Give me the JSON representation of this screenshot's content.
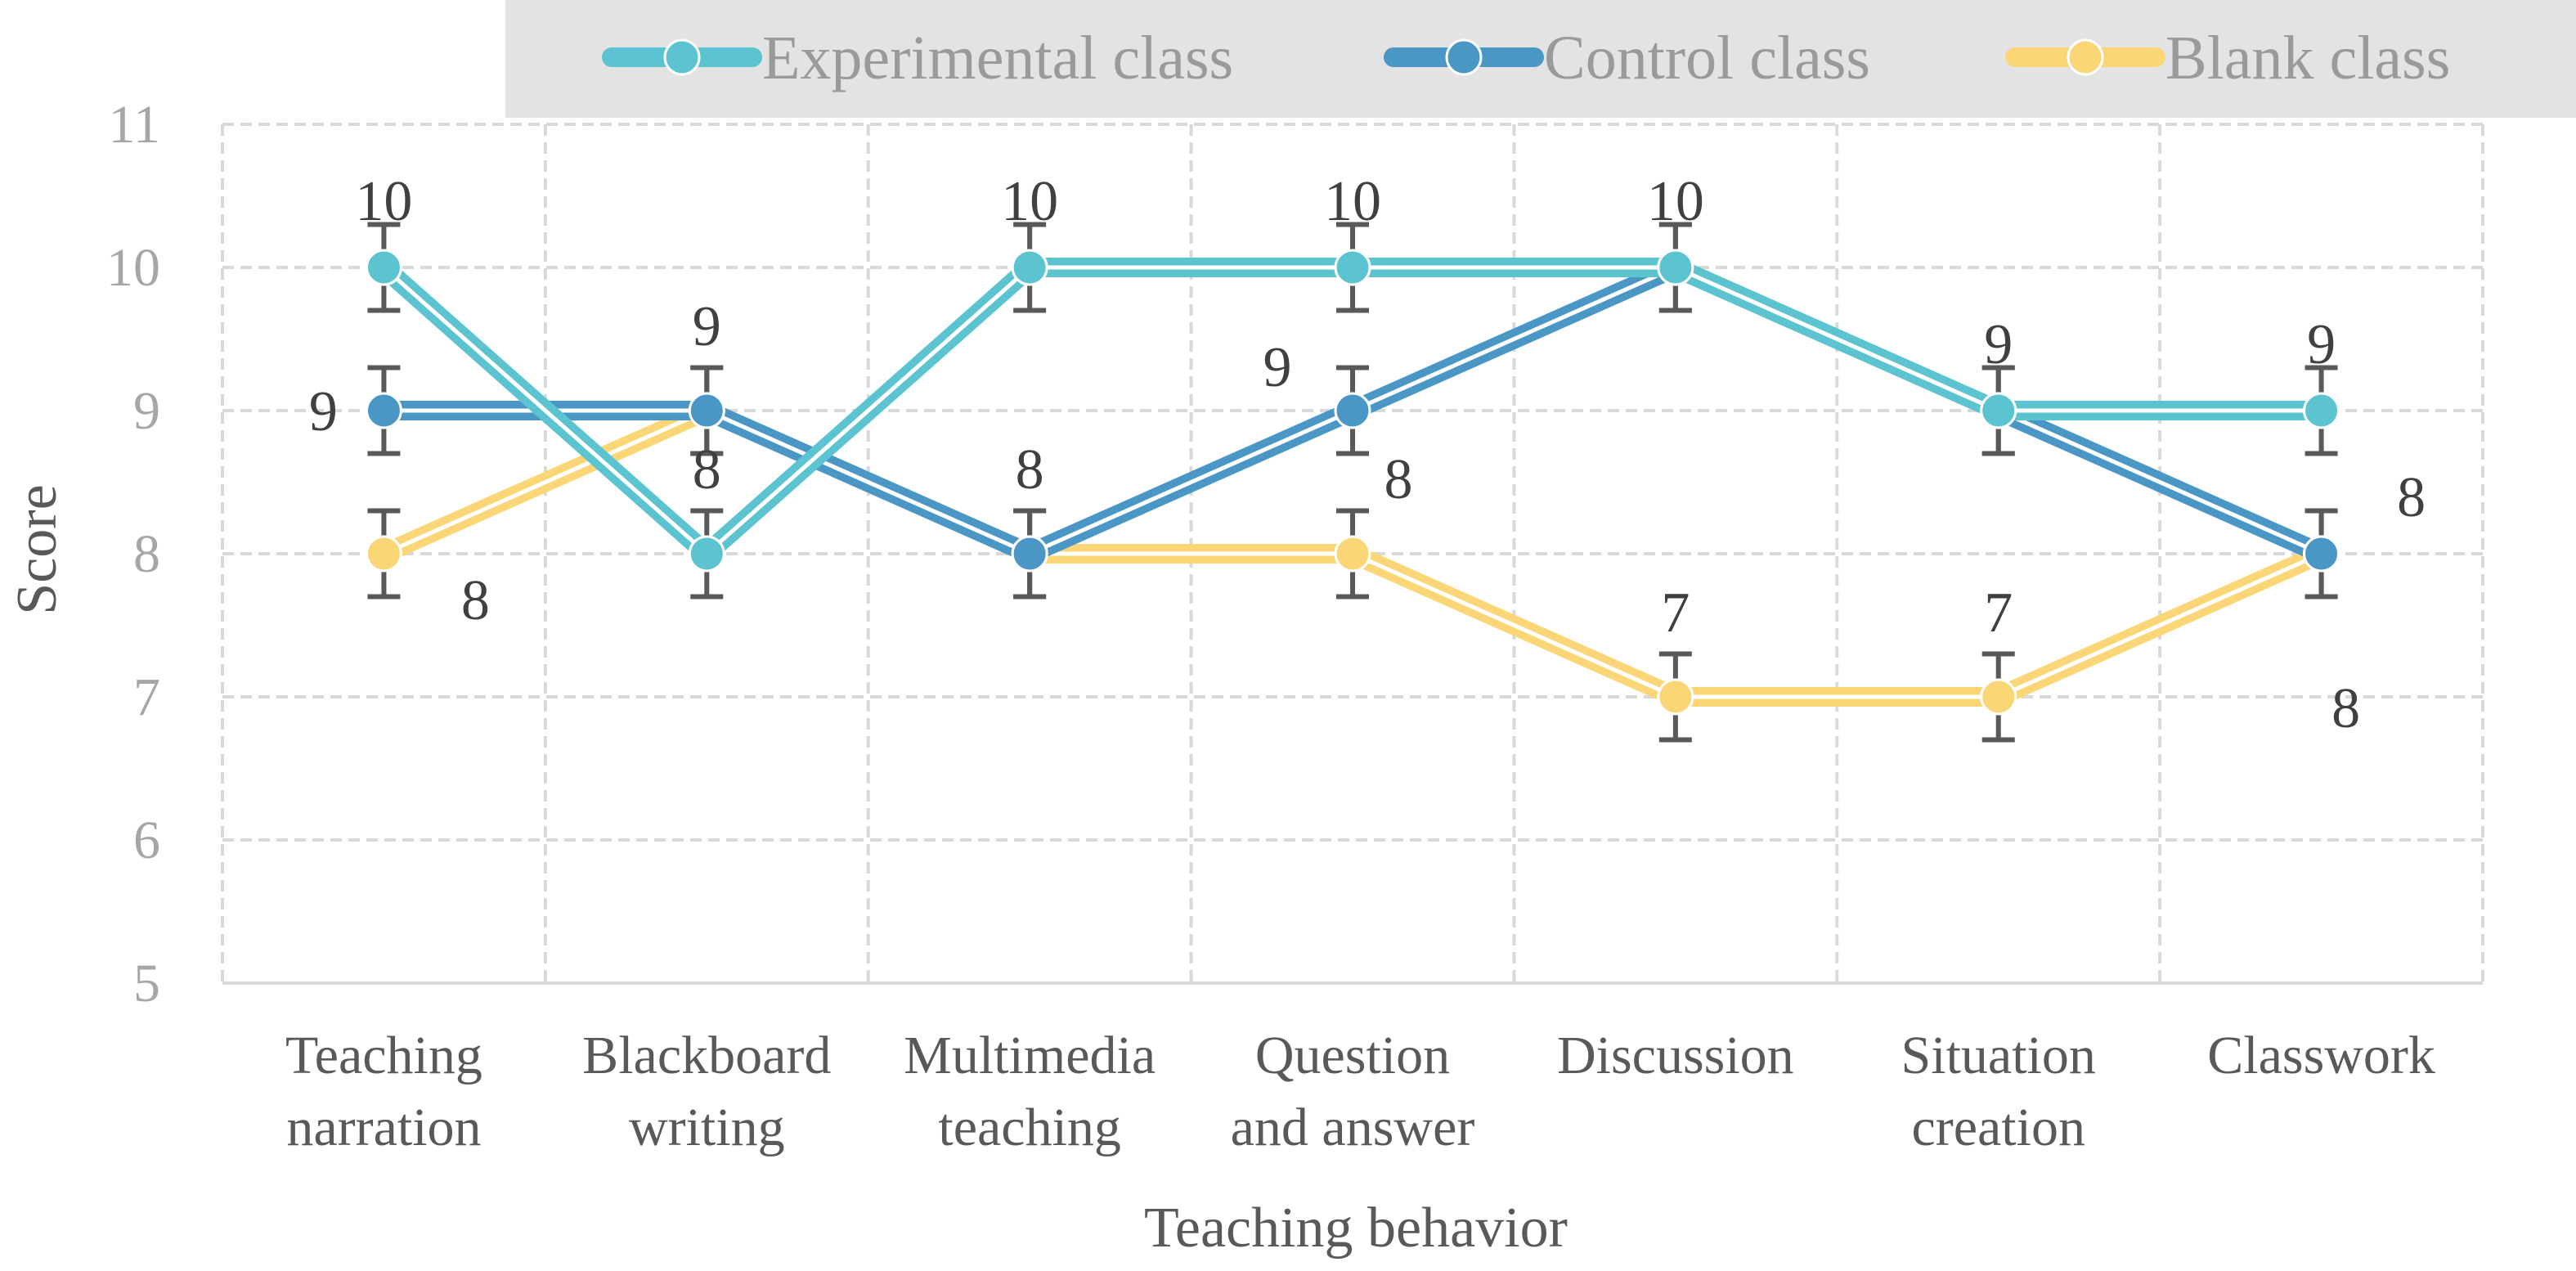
{
  "chart_data": {
    "type": "line",
    "categories": [
      [
        "Teaching",
        "narration"
      ],
      [
        "Blackboard",
        "writing"
      ],
      [
        "Multimedia",
        "teaching"
      ],
      [
        "Question",
        "and answer"
      ],
      [
        "Discussion"
      ],
      [
        "Situation",
        "creation"
      ],
      [
        "Classwork"
      ]
    ],
    "series": [
      {
        "name": "Experimental class",
        "color": "#5bc4d0",
        "values": [
          10,
          8,
          10,
          10,
          10,
          9,
          9
        ],
        "labels": [
          "10",
          "8",
          "10",
          "10",
          "10",
          "9",
          "9"
        ]
      },
      {
        "name": "Control class",
        "color": "#4a97c6",
        "values": [
          9,
          9,
          8,
          9,
          10,
          9,
          8
        ],
        "labels": [
          "9",
          "",
          "",
          "9",
          "",
          "",
          "8"
        ]
      },
      {
        "name": "Blank class",
        "color": "#fbd676",
        "values": [
          8,
          9,
          8,
          8,
          7,
          7,
          8
        ],
        "labels": [
          "8",
          "9",
          "8",
          "8",
          "7",
          "7",
          "8"
        ]
      }
    ],
    "error_bar": 0.3,
    "xlabel": "Teaching behavior",
    "ylabel": "Score",
    "ylim": [
      5,
      11
    ],
    "yticks": [
      5,
      6,
      7,
      8,
      9,
      10,
      11
    ],
    "grid": true,
    "legend_position": "top"
  }
}
